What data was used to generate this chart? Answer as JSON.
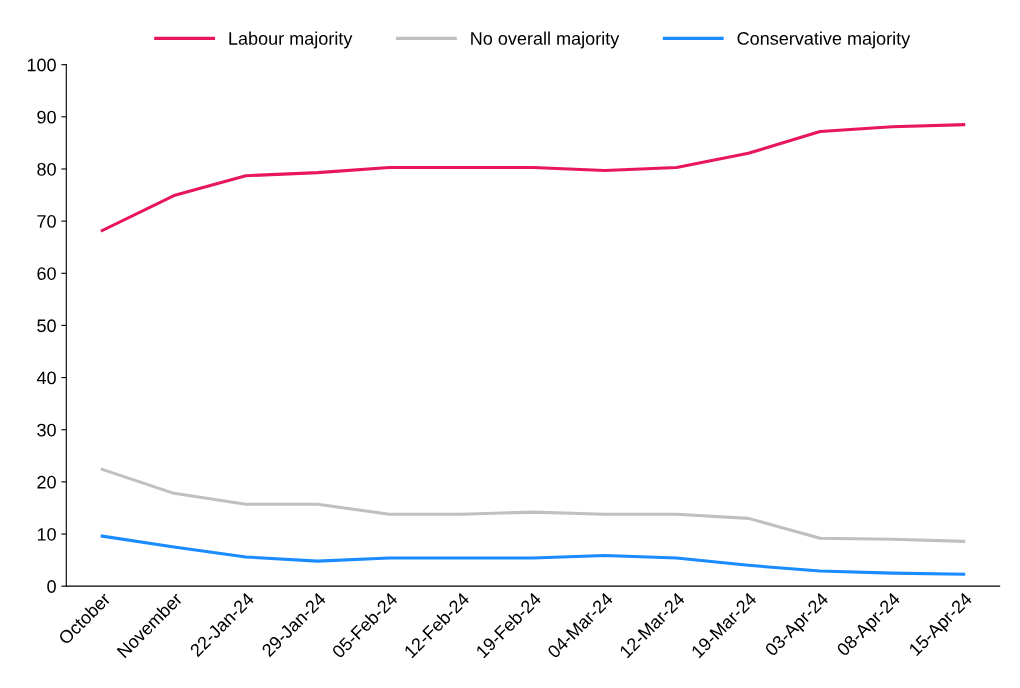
{
  "chart_data": {
    "type": "line",
    "categories": [
      "October",
      "November",
      "22-Jan-24",
      "29-Jan-24",
      "05-Feb-24",
      "12-Feb-24",
      "19-Feb-24",
      "04-Mar-24",
      "12-Mar-24",
      "19-Mar-24",
      "03-Apr-24",
      "08-Apr-24",
      "15-Apr-24"
    ],
    "series": [
      {
        "name": "Labour majority",
        "color": "#e8175d",
        "values": [
          68.2,
          74.9,
          78.7,
          79.3,
          80.3,
          80.3,
          80.3,
          79.7,
          80.3,
          83.0,
          87.2,
          88.1,
          88.5
        ]
      },
      {
        "name": "No overall majority",
        "color": "#c0c0c0",
        "values": [
          22.4,
          17.8,
          15.7,
          15.7,
          13.8,
          13.8,
          14.2,
          13.8,
          13.8,
          13.0,
          9.2,
          9.0,
          8.6
        ]
      },
      {
        "name": "Conservative majority",
        "color": "#1a8cff",
        "values": [
          9.6,
          7.5,
          5.6,
          4.8,
          5.4,
          5.4,
          5.4,
          5.9,
          5.4,
          4.0,
          2.9,
          2.5,
          2.3
        ]
      }
    ],
    "ylim": [
      0,
      100
    ],
    "yticks": [
      0,
      10,
      20,
      30,
      40,
      50,
      60,
      70,
      80,
      90,
      100
    ],
    "grid": false,
    "legend": "top",
    "marker": "none",
    "line_style": "solid"
  }
}
